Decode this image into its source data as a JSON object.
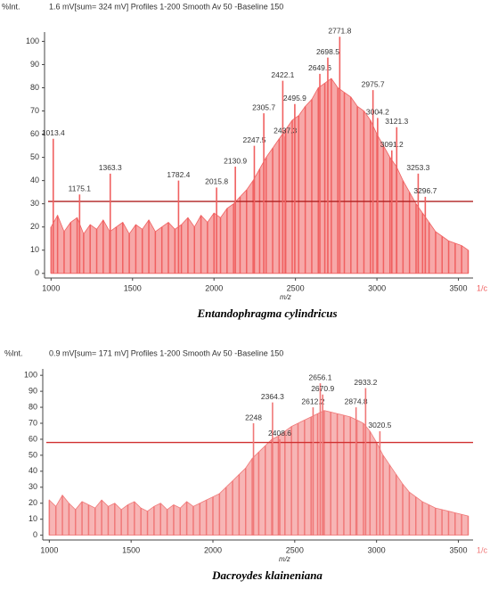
{
  "chart_data": [
    {
      "type": "spectrum",
      "y_label": "%Int.",
      "title": "1.6 mV[sum= 324 mV]  Profiles 1-200 Smooth Av 50 -Baseline 150",
      "x_label": "m/z",
      "x_end_label": "1/c",
      "caption": "Entandophragma cylindricus",
      "color": "#f06060",
      "threshold": 31,
      "threshold_color": "#b02020",
      "xlim": [
        960,
        3590
      ],
      "ylim": [
        -2,
        104
      ],
      "xticks": [
        1000,
        1500,
        2000,
        2500,
        3000,
        3500
      ],
      "yticks": [
        0,
        10,
        20,
        30,
        40,
        50,
        60,
        70,
        80,
        90,
        100
      ],
      "spectrum": {
        "x": [
          1000,
          1040,
          1080,
          1120,
          1160,
          1200,
          1240,
          1280,
          1320,
          1360,
          1400,
          1440,
          1480,
          1520,
          1560,
          1600,
          1640,
          1680,
          1720,
          1760,
          1800,
          1840,
          1880,
          1920,
          1960,
          2000,
          2040,
          2080,
          2120,
          2160,
          2200,
          2240,
          2280,
          2320,
          2360,
          2400,
          2440,
          2480,
          2520,
          2560,
          2600,
          2640,
          2680,
          2720,
          2760,
          2800,
          2840,
          2880,
          2920,
          2960,
          3000,
          3040,
          3080,
          3120,
          3160,
          3200,
          3240,
          3280,
          3320,
          3360,
          3400,
          3440,
          3480,
          3520,
          3560
        ],
        "values": [
          20,
          25,
          18,
          22,
          24,
          17,
          21,
          19,
          23,
          18,
          20,
          22,
          17,
          21,
          19,
          23,
          18,
          20,
          22,
          19,
          21,
          24,
          20,
          25,
          22,
          26,
          24,
          28,
          30,
          33,
          36,
          40,
          45,
          50,
          54,
          58,
          62,
          66,
          68,
          72,
          75,
          80,
          82,
          84,
          80,
          78,
          76,
          72,
          70,
          66,
          60,
          55,
          50,
          46,
          40,
          35,
          30,
          26,
          22,
          18,
          16,
          14,
          13,
          12,
          10
        ]
      },
      "peaks": {
        "x": [
          1013.4,
          1175.1,
          1363.3,
          1782.4,
          2015.8,
          2130.9,
          2247.5,
          2305.7,
          2422.1,
          2437.3,
          2495.9,
          2649.6,
          2698.5,
          2771.8,
          2975.7,
          3004.2,
          3091.2,
          3121.3,
          3253.3,
          3296.7
        ],
        "values": [
          58,
          34,
          43,
          40,
          37,
          46,
          55,
          69,
          83,
          59,
          73,
          86,
          93,
          102,
          79,
          67,
          53,
          63,
          43,
          33
        ]
      }
    },
    {
      "type": "spectrum",
      "y_label": "%Int.",
      "title": "0.9 mV[sum= 171 mV]  Profiles 1-200 Smooth Av 50 -Baseline 150",
      "x_label": "m/z",
      "x_end_label": "1/c",
      "caption": "Dacroydes klaineniana",
      "color": "#f07878",
      "threshold": 58,
      "threshold_color": "#d03030",
      "xlim": [
        960,
        3590
      ],
      "ylim": [
        -3,
        104
      ],
      "xticks": [
        1000,
        1500,
        2000,
        2500,
        3000,
        3500
      ],
      "yticks": [
        0,
        10,
        20,
        30,
        40,
        50,
        60,
        70,
        80,
        90,
        100
      ],
      "spectrum": {
        "x": [
          1000,
          1040,
          1080,
          1120,
          1160,
          1200,
          1240,
          1280,
          1320,
          1360,
          1400,
          1440,
          1480,
          1520,
          1560,
          1600,
          1640,
          1680,
          1720,
          1760,
          1800,
          1840,
          1880,
          1920,
          1960,
          2000,
          2040,
          2080,
          2120,
          2160,
          2200,
          2240,
          2280,
          2320,
          2360,
          2400,
          2440,
          2480,
          2520,
          2560,
          2600,
          2640,
          2680,
          2720,
          2760,
          2800,
          2840,
          2880,
          2920,
          2960,
          3000,
          3040,
          3080,
          3120,
          3160,
          3200,
          3240,
          3280,
          3320,
          3360,
          3400,
          3440,
          3480,
          3520,
          3560
        ],
        "values": [
          22,
          18,
          25,
          20,
          16,
          21,
          19,
          17,
          22,
          18,
          20,
          16,
          19,
          21,
          17,
          15,
          18,
          20,
          16,
          19,
          17,
          21,
          18,
          20,
          22,
          24,
          26,
          30,
          34,
          38,
          42,
          48,
          52,
          56,
          60,
          62,
          65,
          68,
          70,
          72,
          74,
          76,
          78,
          77,
          76,
          75,
          74,
          72,
          70,
          65,
          58,
          50,
          44,
          38,
          32,
          27,
          24,
          21,
          19,
          17,
          16,
          15,
          14,
          13,
          12
        ]
      },
      "peaks": {
        "x": [
          2248.0,
          2364.3,
          2408.6,
          2612.2,
          2656.1,
          2670.9,
          2874.8,
          2933.2,
          3020.5
        ],
        "values": [
          70,
          83,
          60,
          80,
          95,
          88,
          80,
          92,
          65
        ]
      }
    }
  ]
}
